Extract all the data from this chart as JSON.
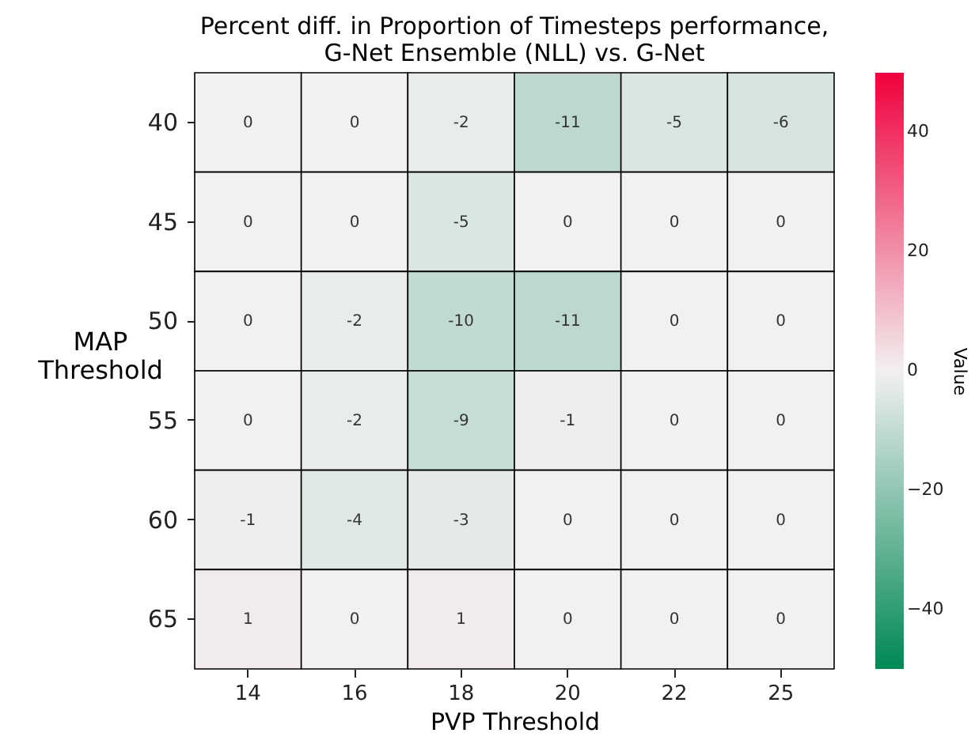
{
  "chart_data": {
    "type": "heatmap",
    "title": "Percent diff. in Proportion of Timesteps performance, G-Net Ensemble (NLL) vs. G-Net",
    "xlabel": "PVP Threshold",
    "ylabel": "MAP Threshold",
    "clabel": "Value",
    "categories": [
      "14",
      "16",
      "18",
      "20",
      "22",
      "25"
    ],
    "y_categories": [
      "40",
      "45",
      "50",
      "55",
      "60",
      "65"
    ],
    "cells": [
      [
        0,
        0,
        -2,
        -11,
        -5,
        -6
      ],
      [
        0,
        0,
        -5,
        0,
        0,
        0
      ],
      [
        0,
        -2,
        -10,
        -11,
        0,
        0
      ],
      [
        0,
        -2,
        -9,
        -1,
        0,
        0
      ],
      [
        -1,
        -4,
        -3,
        0,
        0,
        0
      ],
      [
        1,
        0,
        1,
        0,
        0,
        0
      ]
    ],
    "data_labels": true,
    "clim": [
      -50,
      50
    ],
    "cticks": [
      -40,
      -20,
      0,
      20,
      40
    ]
  }
}
